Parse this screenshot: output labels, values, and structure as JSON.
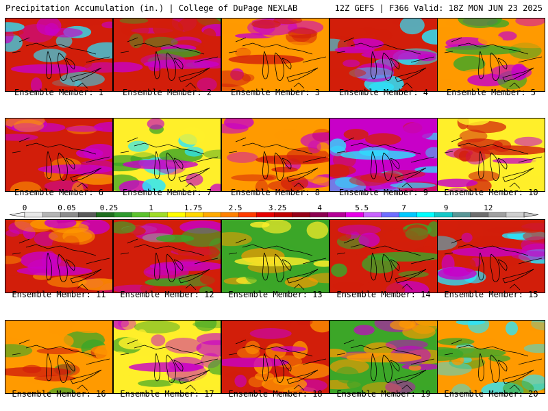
{
  "header": {
    "left": "Precipitation Accumulation (in.) | College of DuPage NEXLAB",
    "right": "12Z GEFS | F366 Valid: 18Z MON JUN 23 2025"
  },
  "members": [
    {
      "label": "Ensemble Member: 1",
      "dominant": "red",
      "accents": [
        "magenta",
        "cyan"
      ]
    },
    {
      "label": "Ensemble Member: 2",
      "dominant": "red",
      "accents": [
        "magenta",
        "green"
      ]
    },
    {
      "label": "Ensemble Member: 3",
      "dominant": "orange",
      "accents": [
        "red",
        "magenta"
      ]
    },
    {
      "label": "Ensemble Member: 4",
      "dominant": "red",
      "accents": [
        "magenta",
        "cyan"
      ]
    },
    {
      "label": "Ensemble Member: 5",
      "dominant": "orange",
      "accents": [
        "green",
        "magenta"
      ]
    },
    {
      "label": "Ensemble Member: 6",
      "dominant": "red",
      "accents": [
        "magenta",
        "orange"
      ]
    },
    {
      "label": "Ensemble Member: 7",
      "dominant": "yellow",
      "accents": [
        "magenta",
        "cyan",
        "green"
      ]
    },
    {
      "label": "Ensemble Member: 8",
      "dominant": "orange",
      "accents": [
        "red",
        "magenta"
      ]
    },
    {
      "label": "Ensemble Member: 9",
      "dominant": "magenta",
      "accents": [
        "cyan",
        "red"
      ]
    },
    {
      "label": "Ensemble Member: 10",
      "dominant": "yellow",
      "accents": [
        "red",
        "magenta"
      ]
    },
    {
      "label": "Ensemble Member: 11",
      "dominant": "red",
      "accents": [
        "magenta",
        "orange"
      ]
    },
    {
      "label": "Ensemble Member: 12",
      "dominant": "red",
      "accents": [
        "magenta",
        "gray",
        "green"
      ]
    },
    {
      "label": "Ensemble Member: 13",
      "dominant": "green",
      "accents": [
        "yellow",
        "orange"
      ]
    },
    {
      "label": "Ensemble Member: 14",
      "dominant": "red",
      "accents": [
        "green",
        "magenta"
      ]
    },
    {
      "label": "Ensemble Member: 15",
      "dominant": "red",
      "accents": [
        "magenta",
        "cyan"
      ]
    },
    {
      "label": "Ensemble Member: 16",
      "dominant": "orange",
      "accents": [
        "red",
        "green"
      ]
    },
    {
      "label": "Ensemble Member: 17",
      "dominant": "yellow",
      "accents": [
        "magenta",
        "green"
      ]
    },
    {
      "label": "Ensemble Member: 18",
      "dominant": "red",
      "accents": [
        "magenta",
        "orange"
      ]
    },
    {
      "label": "Ensemble Member: 19",
      "dominant": "green",
      "accents": [
        "orange",
        "magenta"
      ]
    },
    {
      "label": "Ensemble Member: 20",
      "dominant": "orange",
      "accents": [
        "green",
        "cyan"
      ]
    }
  ],
  "colorbar": {
    "tick_labels": [
      "0",
      "0.05",
      "0.25",
      "1",
      "1.75",
      "2.5",
      "3.25",
      "4",
      "5.5",
      "7",
      "9",
      "12"
    ],
    "colors": [
      "#e8e8e8",
      "#b4b4b4",
      "#8c8c8c",
      "#5a5a5a",
      "#1e6e1e",
      "#2e9a2e",
      "#5cc22e",
      "#a0dc28",
      "#ffff00",
      "#ffd700",
      "#ffaa00",
      "#ff8000",
      "#ff3c00",
      "#e60000",
      "#c00000",
      "#960018",
      "#8c0050",
      "#b40096",
      "#e600e6",
      "#c864ff",
      "#6e6eff",
      "#00c8ff",
      "#00ffff",
      "#14c8c8",
      "#5a9696",
      "#6e6e6e",
      "#a0a0a0",
      "#cfcfcf"
    ]
  },
  "palette": {
    "red": "#d21e0a",
    "orange": "#ff9a00",
    "yellow": "#ffef2a",
    "green": "#3ca628",
    "magenta": "#c800c8",
    "cyan": "#28e6ff",
    "gray": "#9a9a9a",
    "maroon": "#8c0a1e"
  }
}
